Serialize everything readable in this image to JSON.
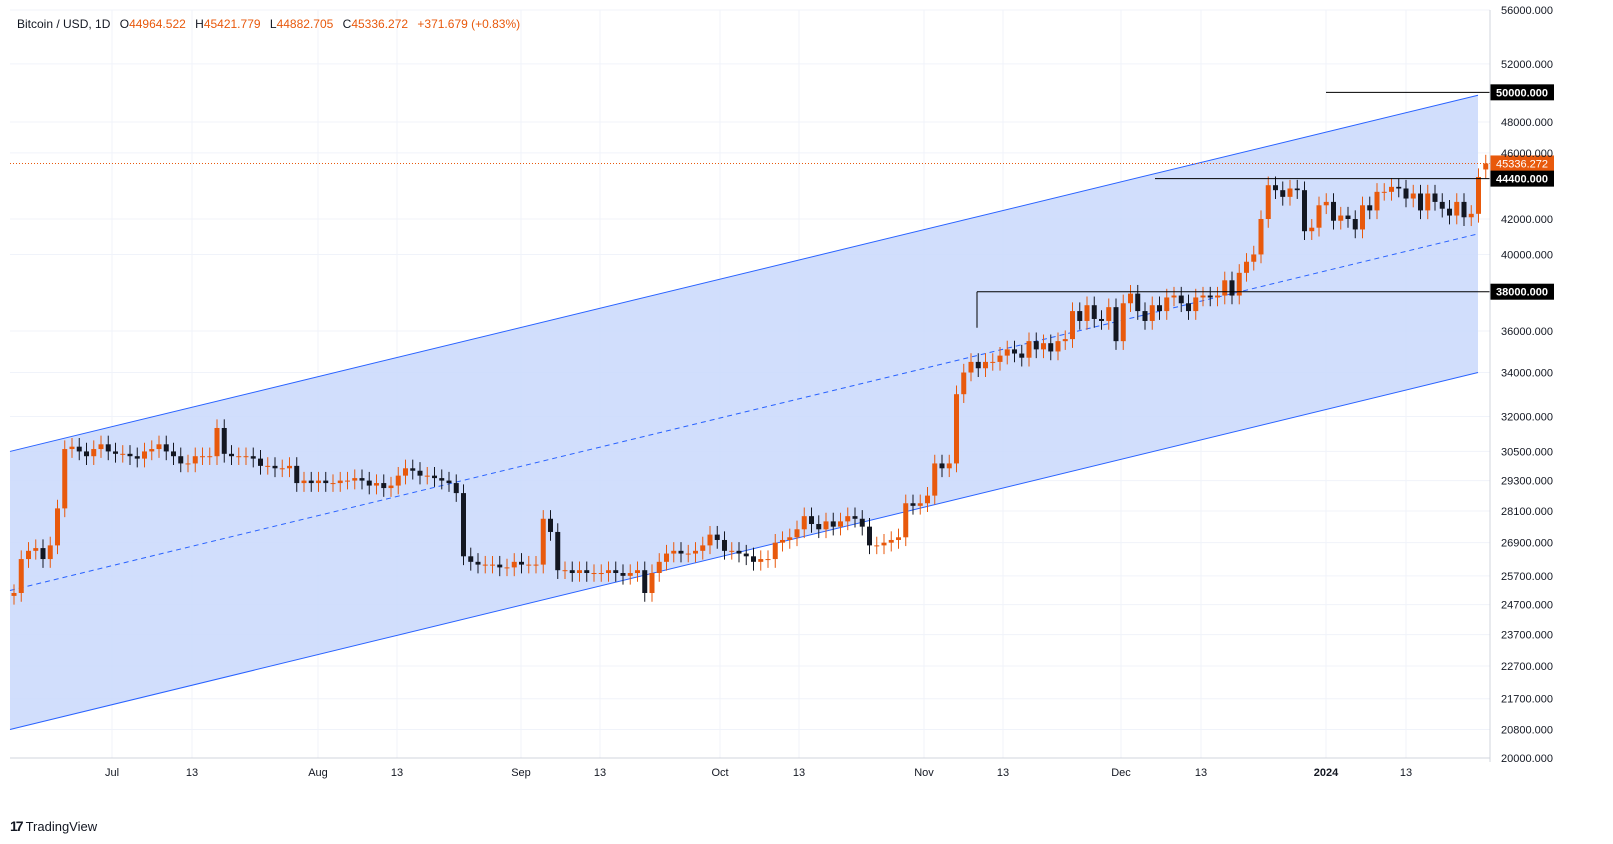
{
  "legend": {
    "symbol": "Bitcoin / USD, 1D",
    "open_label": "O",
    "open": "44964.522",
    "high_label": "H",
    "high": "45421.779",
    "low_label": "L",
    "low": "44882.705",
    "close_label": "C",
    "close": "45336.272",
    "change": "+371.679 (+0.83%)"
  },
  "branding": {
    "logo": "17",
    "name": "TradingView"
  },
  "colors": {
    "up": "#e8590c",
    "down": "#131722",
    "channel_fill": "#c9d8fc",
    "channel_line": "#2962ff",
    "price_line": "#e8590c",
    "level_line": "#000000"
  },
  "chart_data": {
    "type": "candlestick",
    "title": "Bitcoin / USD, 1D",
    "y_scale": "log",
    "ylim": [
      20000,
      56000
    ],
    "y_ticks": [
      "56000.000",
      "52000.000",
      "48000.000",
      "46000.000",
      "42000.000",
      "40000.000",
      "36000.000",
      "34000.000",
      "32000.000",
      "30500.000",
      "29300.000",
      "28100.000",
      "26900.000",
      "25700.000",
      "24700.000",
      "23700.000",
      "22700.000",
      "21700.000",
      "20800.000",
      "20000.000"
    ],
    "x_ticks": [
      "Jul",
      "13",
      "Aug",
      "13",
      "Sep",
      "13",
      "Oct",
      "13",
      "Nov",
      "13",
      "Dec",
      "13",
      "2024",
      "13"
    ],
    "current_price": {
      "value": 45336.272,
      "label": "45336.272"
    },
    "horizontal_levels": [
      {
        "value": 50000,
        "label": "50000.000"
      },
      {
        "value": 44400,
        "label": "44400.000"
      },
      {
        "value": 38000,
        "label": "38000.000"
      }
    ],
    "channel": {
      "upper": [
        {
          "date": "2023-06-20",
          "price": 30500
        },
        {
          "date": "2024-01-20",
          "price": 49800
        }
      ],
      "lower": [
        {
          "date": "2023-06-20",
          "price": 20800
        },
        {
          "date": "2024-01-20",
          "price": 34000
        }
      ]
    },
    "closes": [
      25100,
      26300,
      26600,
      26700,
      26300,
      26800,
      28200,
      30600,
      30700,
      30500,
      30300,
      30600,
      30800,
      30500,
      30400,
      30400,
      30300,
      30200,
      30500,
      30600,
      30800,
      30500,
      30300,
      30000,
      30000,
      30300,
      30300,
      30300,
      31500,
      30400,
      30300,
      30300,
      30300,
      30200,
      29900,
      29900,
      29800,
      29800,
      29900,
      29200,
      29300,
      29200,
      29300,
      29200,
      29200,
      29300,
      29300,
      29400,
      29300,
      29100,
      29200,
      29000,
      29100,
      29500,
      29800,
      29700,
      29500,
      29500,
      29400,
      29300,
      29200,
      28800,
      26400,
      26200,
      26100,
      26100,
      26100,
      26000,
      26000,
      26200,
      26100,
      26100,
      26100,
      27800,
      27300,
      25900,
      25900,
      25800,
      25900,
      25800,
      25800,
      25800,
      25900,
      25800,
      25700,
      25800,
      25900,
      25100,
      25800,
      26200,
      26500,
      26600,
      26500,
      26500,
      26600,
      26800,
      27200,
      27000,
      26600,
      26600,
      26500,
      26400,
      26200,
      26300,
      26300,
      26900,
      27000,
      27100,
      27400,
      27900,
      27600,
      27400,
      27700,
      27500,
      27700,
      27900,
      27800,
      27500,
      26800,
      26800,
      26900,
      27000,
      27100,
      28400,
      28300,
      28400,
      28700,
      30000,
      29800,
      30000,
      33000,
      34000,
      34500,
      34200,
      34500,
      34500,
      34800,
      35100,
      34900,
      34700,
      35500,
      35100,
      35400,
      35000,
      35500,
      35600,
      37000,
      36500,
      37300,
      36600,
      36500,
      37200,
      35500,
      37400,
      37900,
      37000,
      36500,
      37300,
      37000,
      37700,
      37800,
      37400,
      37000,
      37700,
      37800,
      37700,
      37800,
      38600,
      37800,
      39000,
      39600,
      40000,
      42000,
      44000,
      43700,
      43300,
      43800,
      43700,
      41300,
      41500,
      42800,
      43000,
      41900,
      42200,
      42000,
      41400,
      42800,
      42500,
      43600,
      43600,
      43900,
      43800,
      43200,
      43500,
      42500,
      43500,
      43000,
      42600,
      42200,
      43000,
      42100,
      42300,
      44500,
      45336
    ],
    "opens": [
      25000,
      25100,
      26300,
      26600,
      26700,
      26300,
      26800,
      28200,
      30600,
      30700,
      30500,
      30300,
      30600,
      30800,
      30500,
      30400,
      30400,
      30300,
      30200,
      30500,
      30600,
      30800,
      30500,
      30300,
      30000,
      30000,
      30300,
      30300,
      30300,
      31500,
      30400,
      30300,
      30300,
      30300,
      30200,
      29900,
      29900,
      29800,
      29800,
      29900,
      29200,
      29300,
      29200,
      29300,
      29200,
      29200,
      29300,
      29300,
      29400,
      29300,
      29100,
      29200,
      29000,
      29100,
      29500,
      29800,
      29700,
      29500,
      29500,
      29400,
      29300,
      29200,
      28800,
      26400,
      26200,
      26100,
      26100,
      26100,
      26000,
      26000,
      26200,
      26100,
      26100,
      26100,
      27800,
      27300,
      25900,
      25900,
      25800,
      25900,
      25800,
      25800,
      25800,
      25900,
      25800,
      25700,
      25800,
      25900,
      25100,
      25800,
      26200,
      26500,
      26600,
      26500,
      26500,
      26600,
      26800,
      27200,
      27000,
      26600,
      26600,
      26500,
      26400,
      26200,
      26300,
      26300,
      26900,
      27000,
      27100,
      27400,
      27900,
      27600,
      27400,
      27700,
      27500,
      27700,
      27900,
      27800,
      27500,
      26800,
      26800,
      26900,
      27000,
      27100,
      28400,
      28300,
      28400,
      28700,
      30000,
      29800,
      30000,
      33000,
      34000,
      34500,
      34200,
      34500,
      34500,
      34800,
      35100,
      34900,
      34700,
      35500,
      35100,
      35400,
      35000,
      35500,
      35600,
      37000,
      36500,
      37300,
      36600,
      36500,
      37200,
      35500,
      37400,
      37900,
      37000,
      36500,
      37300,
      37000,
      37700,
      37800,
      37400,
      37000,
      37700,
      37800,
      37700,
      37800,
      38600,
      37800,
      39000,
      39600,
      40000,
      42000,
      44000,
      43700,
      43300,
      43800,
      43700,
      41300,
      41500,
      42800,
      43000,
      41900,
      42200,
      42000,
      41400,
      42800,
      42500,
      43600,
      43600,
      43900,
      43800,
      43200,
      43500,
      42500,
      43500,
      43000,
      42600,
      42200,
      43000,
      42100,
      42300,
      44964
    ]
  }
}
